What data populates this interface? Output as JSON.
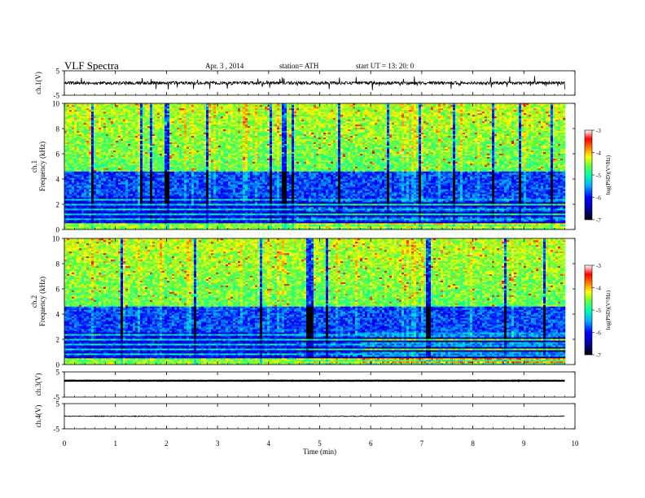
{
  "header": {
    "title": "VLF  Spectra",
    "date": "Apr. 3   , 2014",
    "station": "station= ATH",
    "start_ut": "start  UT  =      13: 20: 0"
  },
  "colors": {
    "background": "#ffffff",
    "axis": "#000000",
    "colormap": [
      "#000000",
      "#0000a0",
      "#0000ff",
      "#00b0ff",
      "#00ffb0",
      "#60ff40",
      "#ffff00",
      "#ff8000",
      "#ff0000",
      "#ffffff"
    ]
  },
  "chart_data": [
    {
      "type": "line",
      "name": "ch1-waveform",
      "ylabel": "ch.1(V)",
      "xlim": [
        0,
        10
      ],
      "ylim": [
        -5,
        5
      ],
      "yticks": [
        "5",
        "-5"
      ],
      "x_end": 9.8,
      "baseline": 0,
      "noise_amplitude": 1.3
    },
    {
      "type": "heatmap",
      "name": "ch1-spectrogram",
      "ylabel": "ch.1\nFrequency  (kHz)",
      "xlim": [
        0,
        10
      ],
      "ylim": [
        0,
        10
      ],
      "yticks": [
        "10",
        "8",
        "6",
        "4",
        "2",
        "0"
      ],
      "x_end": 9.8,
      "colorbar": {
        "label": "log(PSD)(V²/Hz)",
        "ticks": [
          "-3",
          "-4",
          "-5",
          "-6",
          "-7"
        ],
        "range": [
          -7,
          -3
        ]
      },
      "band_change_x": 4.5
    },
    {
      "type": "heatmap",
      "name": "ch2-spectrogram",
      "ylabel": "ch.2\nFrequency  (kHz)",
      "xlim": [
        0,
        10
      ],
      "ylim": [
        0,
        10
      ],
      "yticks": [
        "10",
        "8",
        "6",
        "4",
        "2",
        "0"
      ],
      "x_end": 9.8,
      "colorbar": {
        "label": "log(PSD)(V²/Hz)",
        "ticks": [
          "-3",
          "-4",
          "-5",
          "-6",
          "-7"
        ],
        "range": [
          -7,
          -3
        ]
      },
      "band_change_x": [
        4.5,
        5.8
      ]
    },
    {
      "type": "line",
      "name": "ch3-waveform",
      "ylabel": "ch.3(V)",
      "xlim": [
        0,
        10
      ],
      "ylim": [
        -5,
        5
      ],
      "yticks": [
        "5",
        "-5"
      ],
      "x_end": 9.8,
      "baseline": 1.5,
      "noise_amplitude": 0.15
    },
    {
      "type": "line",
      "name": "ch4-waveform",
      "ylabel": "ch.4(V)",
      "xlim": [
        0,
        10
      ],
      "ylim": [
        -5,
        5
      ],
      "yticks": [
        "5",
        "-5"
      ],
      "x_end": 9.8,
      "baseline": 0,
      "noise_amplitude": 0.35,
      "xlabel": "Time  (min)",
      "xticks": [
        "0",
        "1",
        "2",
        "3",
        "4",
        "5",
        "6",
        "7",
        "8",
        "9",
        "10"
      ]
    }
  ]
}
